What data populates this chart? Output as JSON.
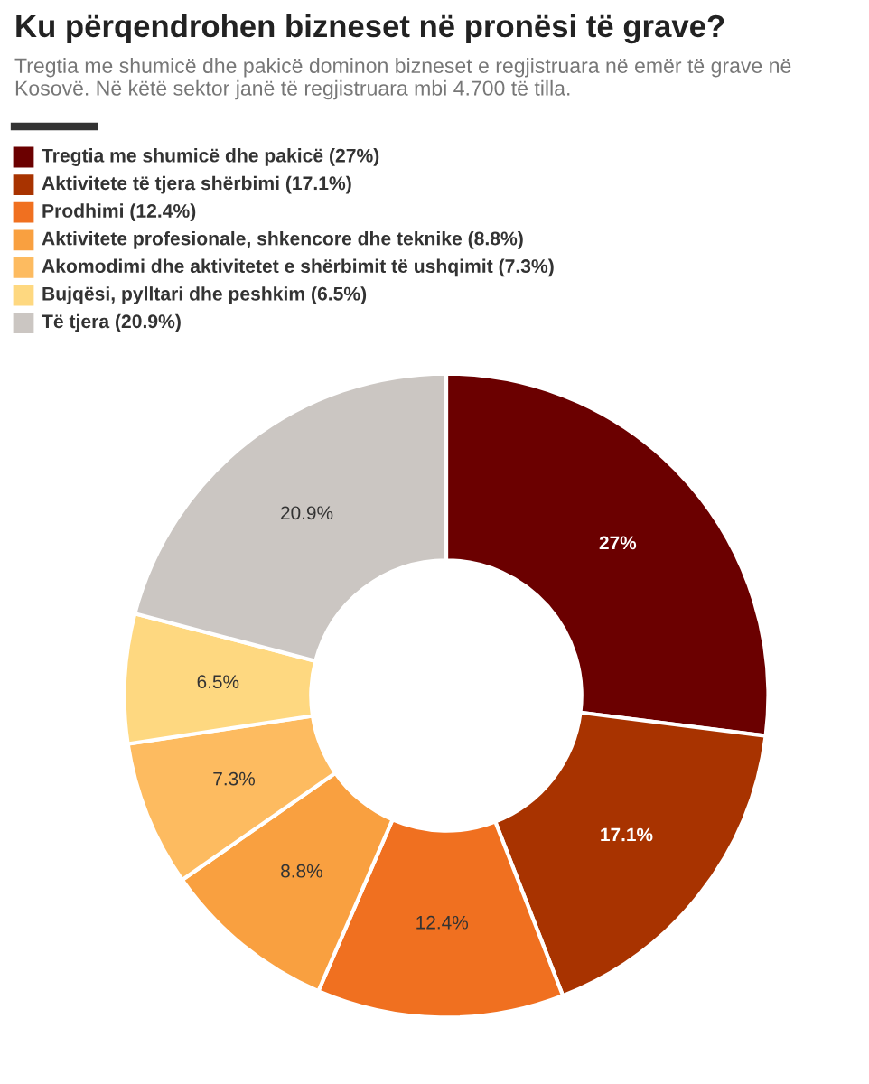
{
  "chart_data": {
    "type": "donut",
    "title": "Ku përqendrohen bizneset në pronësi të grave?",
    "subtitle": "Tregtia me shumicë dhe pakicë dominon bizneset e regjistruara në emër të grave në Kosovë. Në këtë sektor janë të regjistruara mbi 4.700 të tilla.",
    "categories": [
      "Tregtia me shumicë dhe pakicë (27%)",
      "Aktivitete të tjera shërbimi (17.1%)",
      "Prodhimi (12.4%)",
      "Aktivitete profesionale, shkencore dhe teknike (8.8%)",
      "Akomodimi dhe aktivitetet e shërbimit të ushqimit (7.3%)",
      "Bujqësi, pylltari dhe peshkim (6.5%)",
      "Të tjera (20.9%)"
    ],
    "values": [
      27,
      17.1,
      12.4,
      8.8,
      7.3,
      6.5,
      20.9
    ],
    "value_labels": [
      "27%",
      "17.1%",
      "12.4%",
      "8.8%",
      "7.3%",
      "6.5%",
      "20.9%"
    ],
    "colors": [
      "#6b0000",
      "#a83300",
      "#f07020",
      "#f9a040",
      "#fdbb60",
      "#fed880",
      "#cbc6c2"
    ],
    "legend": "top left"
  }
}
